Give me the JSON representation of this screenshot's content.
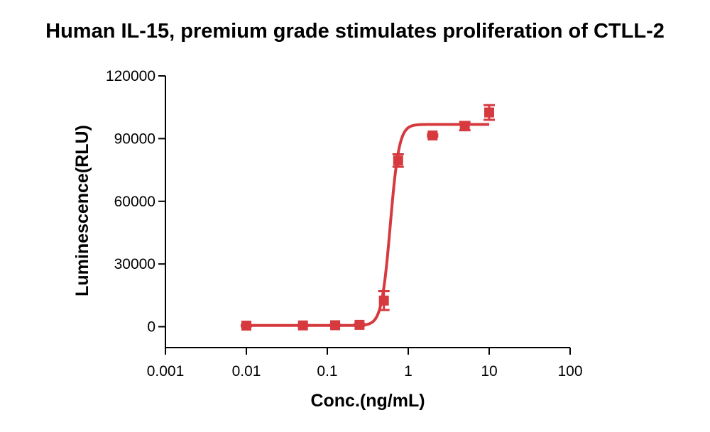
{
  "chart_data": {
    "type": "scatter",
    "title": "Human IL-15, premium grade stimulates proliferation of CTLL-2",
    "xlabel": "Conc.(ng/mL)",
    "ylabel": "Luminescence(RLU)",
    "x_scale": "log",
    "xlim": [
      0.001,
      100
    ],
    "ylim": [
      -10000,
      120000
    ],
    "x_ticks": [
      0.001,
      0.01,
      0.1,
      1,
      10,
      100
    ],
    "x_tick_labels": [
      "0.001",
      "0.01",
      "0.1",
      "1",
      "10",
      "100"
    ],
    "y_ticks": [
      0,
      30000,
      60000,
      90000,
      120000
    ],
    "y_tick_labels": [
      "0",
      "30000",
      "60000",
      "90000",
      "120000"
    ],
    "grid": false,
    "color": "#d63a3f",
    "series": [
      {
        "points": [
          {
            "x": 0.01,
            "y": 500,
            "err": 300
          },
          {
            "x": 0.05,
            "y": 600,
            "err": 300
          },
          {
            "x": 0.125,
            "y": 700,
            "err": 300
          },
          {
            "x": 0.25,
            "y": 900,
            "err": 400
          },
          {
            "x": 0.5,
            "y": 12500,
            "err": 4500
          },
          {
            "x": 0.75,
            "y": 79500,
            "err": 3000
          },
          {
            "x": 2,
            "y": 91500,
            "err": 500
          },
          {
            "x": 5,
            "y": 96000,
            "err": 2000
          },
          {
            "x": 10,
            "y": 102500,
            "err": 3500
          }
        ],
        "fit": {
          "model": "4PL",
          "bottom": 600,
          "top": 96800,
          "ec50": 0.6,
          "hill": 8
        }
      }
    ]
  }
}
